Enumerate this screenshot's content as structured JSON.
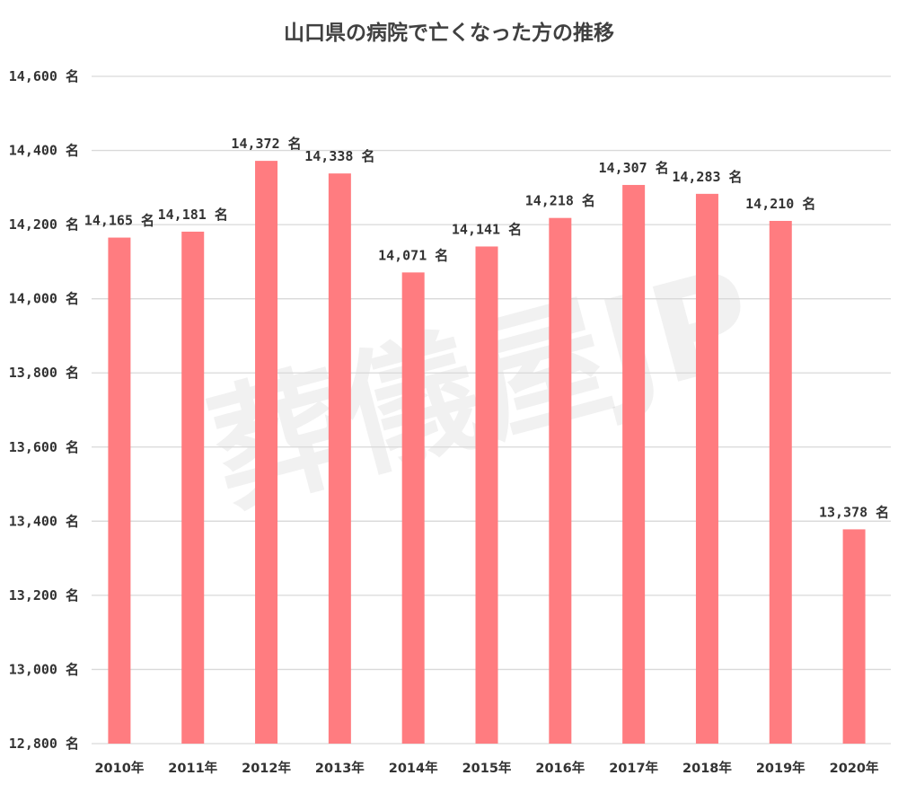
{
  "chart_data": {
    "type": "bar",
    "title": "山口県の病院で亡くなった方の推移",
    "watermark": "葬儀屋JP",
    "categories": [
      "2010年",
      "2011年",
      "2012年",
      "2013年",
      "2014年",
      "2015年",
      "2016年",
      "2017年",
      "2018年",
      "2019年",
      "2020年"
    ],
    "values": [
      14165,
      14181,
      14372,
      14338,
      14071,
      14141,
      14218,
      14307,
      14283,
      14210,
      13378
    ],
    "data_labels": [
      "14,165 名",
      "14,181 名",
      "14,372 名",
      "14,338 名",
      "14,071 名",
      "14,141 名",
      "14,218 名",
      "14,307 名",
      "14,283 名",
      "14,210 名",
      "13,378 名"
    ],
    "ylim": [
      12800,
      14600
    ],
    "y_ticks": [
      12800,
      13000,
      13200,
      13400,
      13600,
      13800,
      14000,
      14200,
      14400,
      14600
    ],
    "y_tick_labels": [
      "12,800 名",
      "13,000 名",
      "13,200 名",
      "13,400 名",
      "13,600 名",
      "13,800 名",
      "14,000 名",
      "14,200 名",
      "14,400 名",
      "14,600 名"
    ],
    "xlabel": "",
    "ylabel": "",
    "grid": true,
    "legend": "none",
    "bar_color": "#ff7c80"
  }
}
